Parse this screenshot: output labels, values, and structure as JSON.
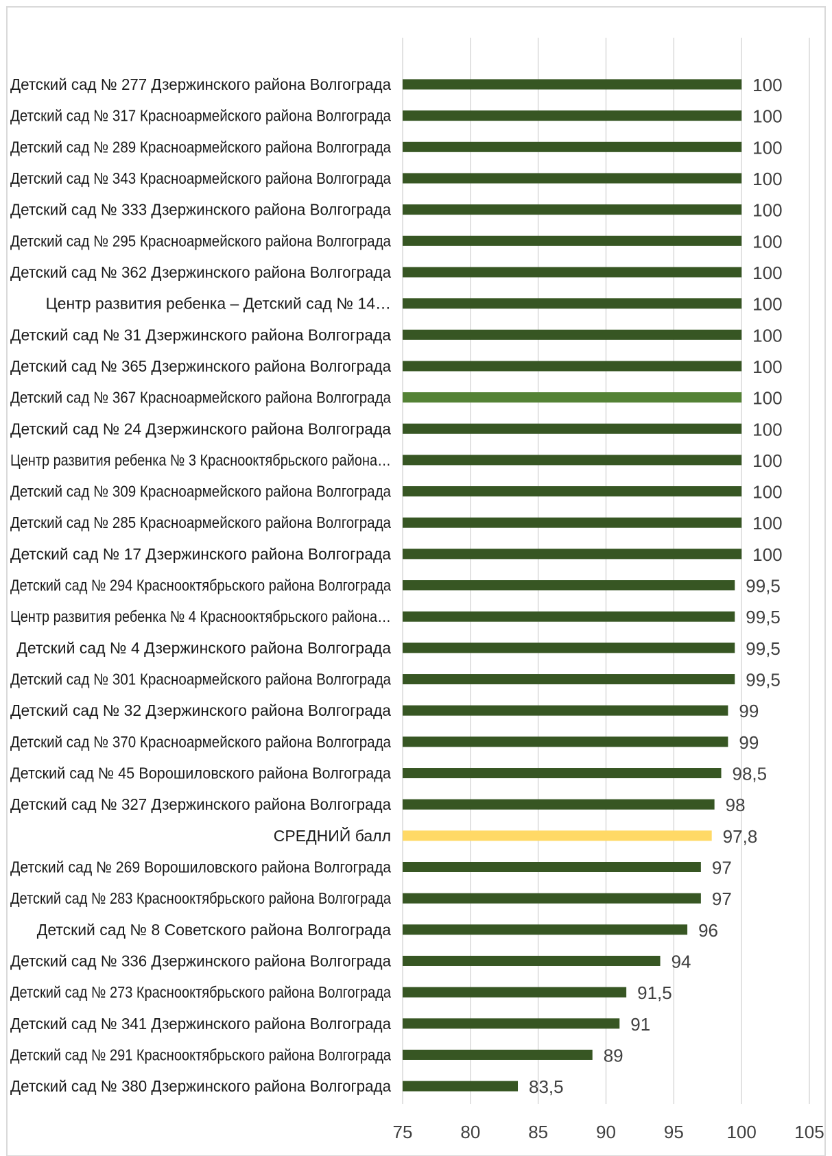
{
  "chart_data": {
    "type": "bar",
    "orientation": "horizontal",
    "title": "",
    "xlabel": "",
    "ylabel": "",
    "xlim": [
      75,
      105
    ],
    "x_ticks": [
      "75",
      "80",
      "85",
      "90",
      "95",
      "100",
      "105"
    ],
    "grid": "vertical",
    "legend": "none",
    "colors": {
      "default": "#375623",
      "highlight": "#548235",
      "average": "#FFD966",
      "grid": "#d9d9d9",
      "text": "#1a1a1a",
      "value_text": "#404040"
    },
    "categories": [
      "Детский сад № 277 Дзержинского района Волгограда",
      "Детский сад № 317 Красноармейского района Волгограда",
      "Детский сад № 289 Красноармейского района Волгограда",
      "Детский сад № 343 Красноармейского района Волгограда",
      "Детский сад № 333 Дзержинского района Волгограда",
      "Детский сад № 295 Красноармейского района Волгограда",
      "Детский сад № 362 Дзержинского района Волгограда",
      "Центр развития ребенка – Детский сад № 14…",
      "Детский сад № 31 Дзержинского района Волгограда",
      "Детский сад № 365 Дзержинского района Волгограда",
      "Детский сад № 367 Красноармейского района Волгограда",
      "Детский сад № 24 Дзержинского района Волгограда",
      "Центр развития ребенка № 3 Краснооктябрьского района…",
      "Детский сад № 309 Красноармейского района Волгограда",
      "Детский сад № 285 Красноармейского района Волгограда",
      "Детский сад № 17 Дзержинского района Волгограда",
      "Детский сад № 294 Краснооктябрьского района Волгограда",
      "Центр развития ребенка № 4 Краснооктябрьского района…",
      "Детский сад № 4 Дзержинского района Волгограда",
      "Детский сад № 301 Красноармейского района Волгограда",
      "Детский сад № 32 Дзержинского района Волгограда",
      "Детский сад № 370 Красноармейского района Волгограда",
      "Детский сад № 45 Ворошиловского района Волгограда",
      "Детский сад № 327 Дзержинского района Волгограда",
      "СРЕДНИЙ балл",
      "Детский сад № 269 Ворошиловского района Волгограда",
      "Детский сад № 283 Краснооктябрьского района Волгограда",
      "Детский сад № 8 Советского района Волгограда",
      "Детский сад № 336 Дзержинского района Волгограда",
      "Детский сад № 273 Краснооктябрьского района Волгограда",
      "Детский сад № 341 Дзержинского района Волгограда",
      "Детский сад № 291 Краснооктябрьского района Волгограда",
      "Детский сад № 380 Дзержинского района Волгограда"
    ],
    "values": [
      100,
      100,
      100,
      100,
      100,
      100,
      100,
      100,
      100,
      100,
      100,
      100,
      100,
      100,
      100,
      100,
      99.5,
      99.5,
      99.5,
      99.5,
      99,
      99,
      98.5,
      98,
      97.8,
      97,
      97,
      96,
      94,
      91.5,
      91,
      89,
      83.5
    ],
    "value_labels": [
      "100",
      "100",
      "100",
      "100",
      "100",
      "100",
      "100",
      "100",
      "100",
      "100",
      "100",
      "100",
      "100",
      "100",
      "100",
      "100",
      "99,5",
      "99,5",
      "99,5",
      "99,5",
      "99",
      "99",
      "98,5",
      "98",
      "97,8",
      "97",
      "97",
      "96",
      "94",
      "91,5",
      "91",
      "89",
      "83,5"
    ],
    "bar_kind": [
      "default",
      "default",
      "default",
      "default",
      "default",
      "default",
      "default",
      "default",
      "default",
      "default",
      "highlight",
      "default",
      "default",
      "default",
      "default",
      "default",
      "default",
      "default",
      "default",
      "default",
      "default",
      "default",
      "default",
      "default",
      "average",
      "default",
      "default",
      "default",
      "default",
      "default",
      "default",
      "default",
      "default"
    ]
  }
}
